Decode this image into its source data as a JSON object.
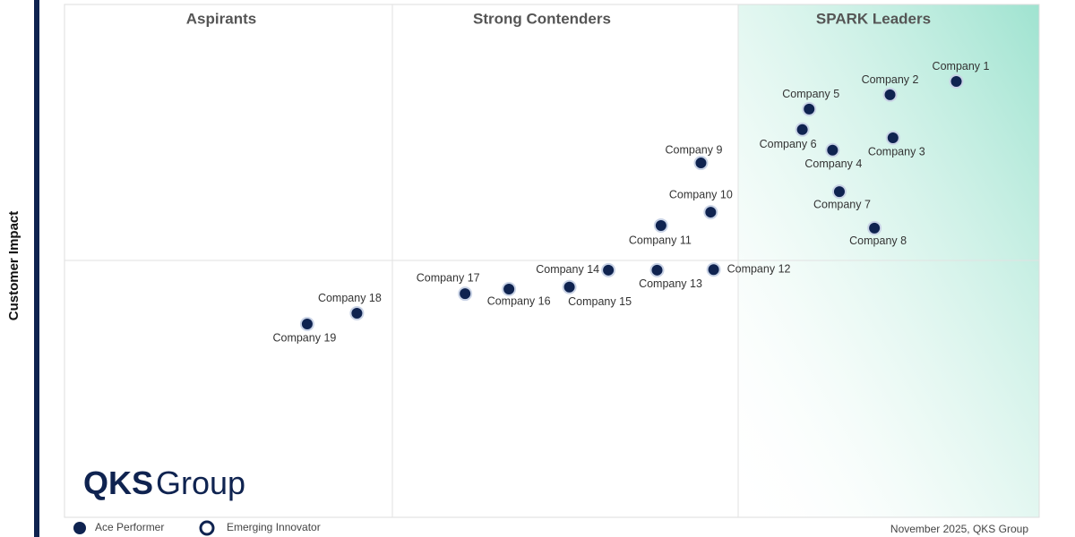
{
  "chart_data": {
    "type": "scatter",
    "quadrant_labels": [
      "Aspirants",
      "Strong Contenders",
      "SPARK Leaders"
    ],
    "ylabel": "Customer Impact",
    "logo": {
      "bold": "QKS",
      "regular": "Group"
    },
    "legend": [
      "Ace Performer",
      "Emerging Innovator"
    ],
    "footer": "November 2025, QKS Group",
    "xlim": [
      0,
      100
    ],
    "ylim": [
      0,
      100
    ],
    "color": "#0f2350",
    "labels": [
      "Company 1",
      "Company 2",
      "Company 3",
      "Company 4",
      "Company 5",
      "Company 6",
      "Company 7",
      "Company 8",
      "Company 9",
      "Company 10",
      "Company 11",
      "Company 12",
      "Company 13",
      "Company 14",
      "Company 15",
      "Company 16",
      "Company 17",
      "Company 18",
      "Company 19"
    ],
    "x": [
      91.5,
      84.7,
      85.0,
      78.8,
      76.4,
      75.7,
      79.5,
      83.1,
      65.3,
      66.3,
      61.2,
      66.6,
      60.8,
      55.8,
      51.8,
      45.6,
      41.1,
      30.0,
      24.9
    ],
    "y": [
      85.0,
      82.4,
      74.0,
      71.6,
      79.6,
      75.6,
      63.5,
      56.4,
      69.1,
      59.5,
      56.9,
      48.3,
      48.2,
      48.2,
      44.9,
      44.5,
      43.6,
      39.8,
      37.7
    ]
  }
}
